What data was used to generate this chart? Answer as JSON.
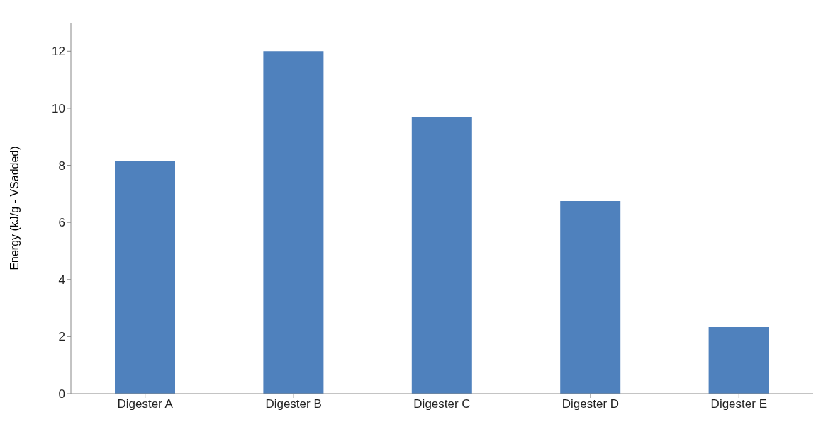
{
  "chart_data": {
    "type": "bar",
    "ylabel": "Energy (kJ/g - VSadded)",
    "categories": [
      "Digester A",
      "Digester B",
      "Digester C",
      "Digester D",
      "Digester E"
    ],
    "values": [
      8.15,
      12.0,
      9.7,
      6.75,
      2.33
    ],
    "color": "#4f81bd",
    "ylim": [
      0,
      13
    ],
    "yticks": [
      0,
      2,
      4,
      6,
      8,
      10,
      12
    ],
    "grid": false,
    "legend": false
  }
}
